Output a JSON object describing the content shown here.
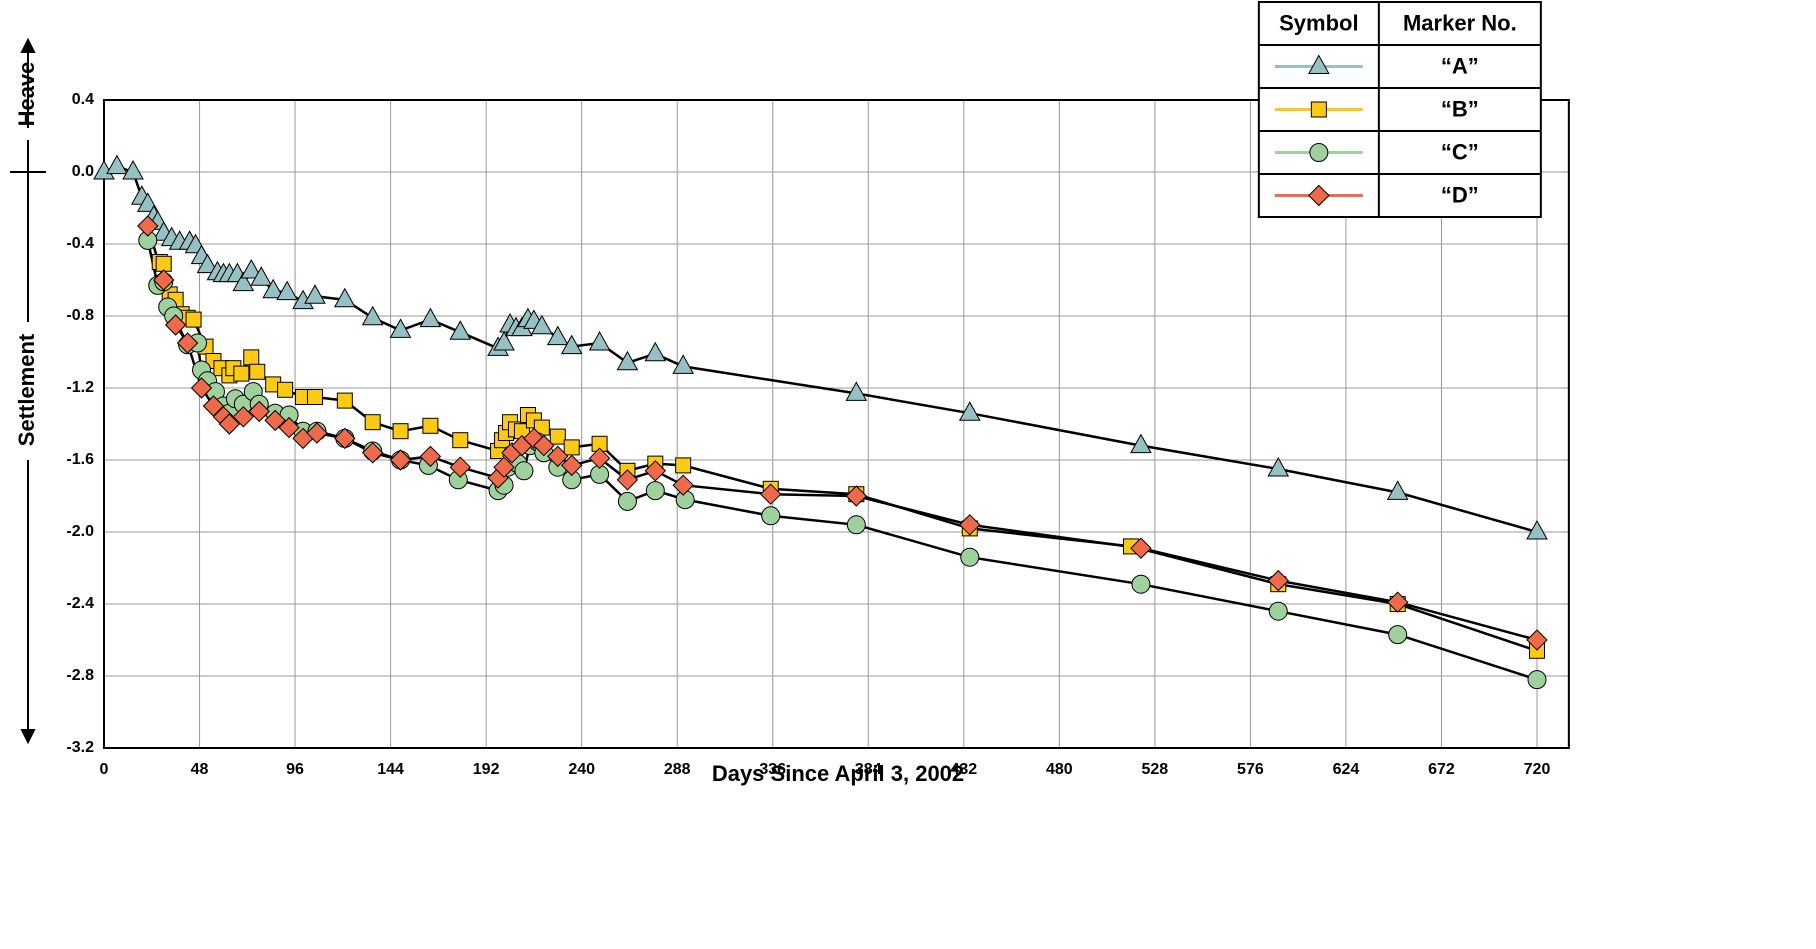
{
  "chart_data": {
    "type": "line",
    "xlabel": "Days Since April 3, 2002",
    "ylabel_top": "Heave",
    "ylabel_bottom": "Settlement",
    "xlim": [
      0,
      736
    ],
    "ylim": [
      -3.2,
      0.4
    ],
    "xticks": [
      0,
      48,
      96,
      144,
      192,
      240,
      288,
      336,
      384,
      432,
      480,
      528,
      576,
      624,
      672,
      720
    ],
    "yticks": [
      0.4,
      {
        "value": 0,
        "label": "0.0"
      },
      -0.4,
      -0.8,
      -1.2,
      -1.6,
      {
        "value": -2,
        "label": "-2.0"
      },
      -2.4,
      -2.8,
      -3.2
    ],
    "grid": true,
    "line_color": "#000000",
    "legend_corner": "upper right",
    "legend_columns": [
      "Symbol",
      "Marker No."
    ],
    "series": [
      {
        "name": "“A”",
        "color": "#96c0c4",
        "marker": "triangle",
        "x": [
          0,
          6.5,
          14.6,
          19,
          22,
          25,
          27,
          30,
          34,
          38,
          43,
          46,
          49,
          52,
          57,
          60,
          63,
          67,
          70,
          74,
          79,
          85,
          92,
          100,
          106,
          121,
          135,
          149,
          164,
          179,
          198,
          201,
          204,
          207,
          210,
          213,
          216,
          220,
          228,
          235,
          249,
          263,
          277,
          291,
          378,
          435,
          521,
          590,
          650,
          720
        ],
        "values": [
          0,
          0.03,
          0,
          -0.14,
          -0.18,
          -0.25,
          -0.28,
          -0.34,
          -0.37,
          -0.39,
          -0.39,
          -0.41,
          -0.47,
          -0.52,
          -0.56,
          -0.57,
          -0.57,
          -0.57,
          -0.62,
          -0.55,
          -0.59,
          -0.66,
          -0.67,
          -0.72,
          -0.69,
          -0.71,
          -0.81,
          -0.88,
          -0.82,
          -0.89,
          -0.98,
          -0.95,
          -0.85,
          -0.87,
          -0.87,
          -0.82,
          -0.83,
          -0.86,
          -0.92,
          -0.97,
          -0.95,
          -1.06,
          -1.01,
          -1.08,
          -1.23,
          -1.34,
          -1.52,
          -1.65,
          -1.78,
          -2.0
        ]
      },
      {
        "name": "“B”",
        "color": "#fcc915",
        "marker": "square",
        "x": [
          28,
          30,
          33,
          36,
          39,
          42,
          45,
          51,
          55,
          59,
          63,
          65,
          69,
          74,
          77,
          85,
          91,
          100,
          106,
          121,
          135,
          149,
          164,
          179,
          198,
          200,
          202,
          204,
          207,
          210,
          213,
          216,
          220,
          228,
          235,
          249,
          263,
          277,
          291,
          335,
          378,
          435,
          516,
          590,
          650,
          720
        ],
        "values": [
          -0.5,
          -0.51,
          -0.68,
          -0.71,
          -0.79,
          -0.81,
          -0.82,
          -0.97,
          -1.05,
          -1.09,
          -1.13,
          -1.09,
          -1.12,
          -1.03,
          -1.11,
          -1.18,
          -1.21,
          -1.25,
          -1.25,
          -1.27,
          -1.39,
          -1.44,
          -1.41,
          -1.49,
          -1.55,
          -1.49,
          -1.45,
          -1.39,
          -1.43,
          -1.44,
          -1.35,
          -1.38,
          -1.42,
          -1.47,
          -1.53,
          -1.51,
          -1.66,
          -1.62,
          -1.63,
          -1.76,
          -1.79,
          -1.98,
          -2.08,
          -2.29,
          -2.4,
          -2.66
        ]
      },
      {
        "name": "“C”",
        "color": "#9fd19c",
        "marker": "circle",
        "x": [
          22,
          27,
          30,
          32,
          35,
          42,
          47,
          49,
          52,
          56,
          60,
          63,
          66,
          70,
          75,
          78,
          86,
          93,
          100,
          107,
          121,
          135,
          149,
          163,
          178,
          198,
          201,
          203,
          205,
          208,
          211,
          214,
          218,
          221,
          228,
          235,
          249,
          263,
          277,
          292,
          335,
          378,
          435,
          521,
          590,
          650,
          720
        ],
        "values": [
          -0.38,
          -0.63,
          -0.61,
          -0.75,
          -0.8,
          -0.96,
          -0.95,
          -1.1,
          -1.16,
          -1.22,
          -1.3,
          -1.34,
          -1.26,
          -1.29,
          -1.22,
          -1.29,
          -1.34,
          -1.35,
          -1.44,
          -1.44,
          -1.48,
          -1.55,
          -1.6,
          -1.63,
          -1.71,
          -1.77,
          -1.74,
          -1.64,
          -1.57,
          -1.62,
          -1.66,
          -1.52,
          -1.5,
          -1.56,
          -1.64,
          -1.71,
          -1.68,
          -1.83,
          -1.77,
          -1.82,
          -1.91,
          -1.96,
          -2.14,
          -2.29,
          -2.44,
          -2.57,
          -2.82
        ]
      },
      {
        "name": "“D”",
        "color": "#ef6a4b",
        "marker": "diamond",
        "x": [
          22,
          30,
          36,
          42,
          49,
          55,
          60,
          63,
          70,
          78,
          86,
          93,
          100,
          107,
          121,
          135,
          149,
          164,
          179,
          198,
          201,
          205,
          210,
          216,
          221,
          228,
          235,
          249,
          263,
          277,
          291,
          335,
          378,
          435,
          521,
          590,
          650,
          720
        ],
        "values": [
          -0.3,
          -0.6,
          -0.85,
          -0.95,
          -1.2,
          -1.3,
          -1.36,
          -1.4,
          -1.36,
          -1.33,
          -1.38,
          -1.42,
          -1.48,
          -1.45,
          -1.48,
          -1.56,
          -1.6,
          -1.58,
          -1.64,
          -1.7,
          -1.64,
          -1.56,
          -1.52,
          -1.48,
          -1.52,
          -1.58,
          -1.63,
          -1.59,
          -1.71,
          -1.66,
          -1.74,
          -1.79,
          -1.8,
          -1.96,
          -2.09,
          -2.27,
          -2.39,
          -2.6
        ]
      }
    ]
  }
}
